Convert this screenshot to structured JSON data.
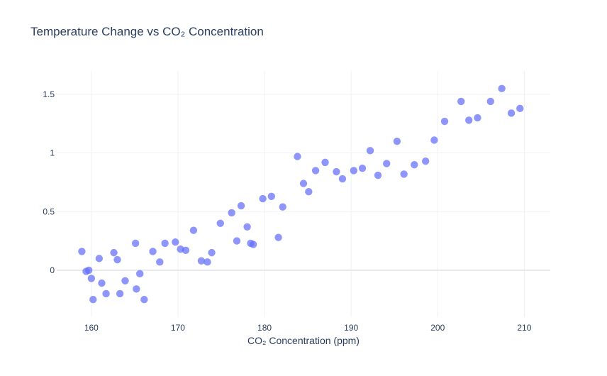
{
  "chart_data": {
    "type": "scatter",
    "title": "Temperature Change vs CO₂ Concentration",
    "xlabel": "CO₂ Concentration (ppm)",
    "ylabel": "",
    "xlim": [
      156,
      213
    ],
    "ylim": [
      -0.4,
      1.7
    ],
    "xticks": [
      160,
      170,
      180,
      190,
      200,
      210
    ],
    "yticks": [
      0,
      0.5,
      1,
      1.5
    ],
    "xtick_labels": [
      "160",
      "170",
      "180",
      "190",
      "200",
      "210"
    ],
    "ytick_labels": [
      "0",
      "0.5",
      "1",
      "1.5"
    ],
    "grid": true,
    "legend": "none",
    "color": "#636efa",
    "series": [
      {
        "x": [
          158.9,
          159.4,
          159.7,
          160.0,
          160.2,
          160.9,
          161.2,
          161.7,
          162.6,
          163.0,
          163.3,
          163.9,
          165.1,
          165.2,
          165.6,
          166.1,
          167.1,
          167.9,
          168.5,
          169.7,
          170.3,
          170.9,
          171.8,
          172.7,
          173.4,
          173.9,
          174.9,
          176.2,
          176.8,
          177.3,
          178.0,
          178.4,
          178.7,
          179.8,
          180.8,
          181.6,
          182.1,
          183.8,
          184.5,
          185.1,
          185.9,
          187.0,
          188.3,
          189.0,
          190.3,
          191.3,
          192.2,
          193.1,
          194.1,
          195.3,
          196.1,
          197.3,
          198.6,
          199.6,
          200.8,
          202.7,
          203.6,
          204.6,
          206.1,
          207.4,
          208.5,
          209.5
        ],
        "y": [
          0.16,
          -0.01,
          0.0,
          -0.07,
          -0.25,
          0.1,
          -0.11,
          -0.2,
          0.15,
          0.09,
          -0.2,
          -0.09,
          0.23,
          -0.16,
          -0.03,
          -0.25,
          0.16,
          0.07,
          0.23,
          0.24,
          0.18,
          0.17,
          0.34,
          0.08,
          0.07,
          0.15,
          0.4,
          0.49,
          0.25,
          0.55,
          0.37,
          0.23,
          0.22,
          0.61,
          0.63,
          0.28,
          0.54,
          0.97,
          0.74,
          0.67,
          0.85,
          0.92,
          0.84,
          0.78,
          0.85,
          0.87,
          1.02,
          0.81,
          0.91,
          1.1,
          0.82,
          0.9,
          0.93,
          1.11,
          1.27,
          1.44,
          1.28,
          1.3,
          1.44,
          1.55,
          1.34,
          1.38
        ]
      }
    ]
  }
}
